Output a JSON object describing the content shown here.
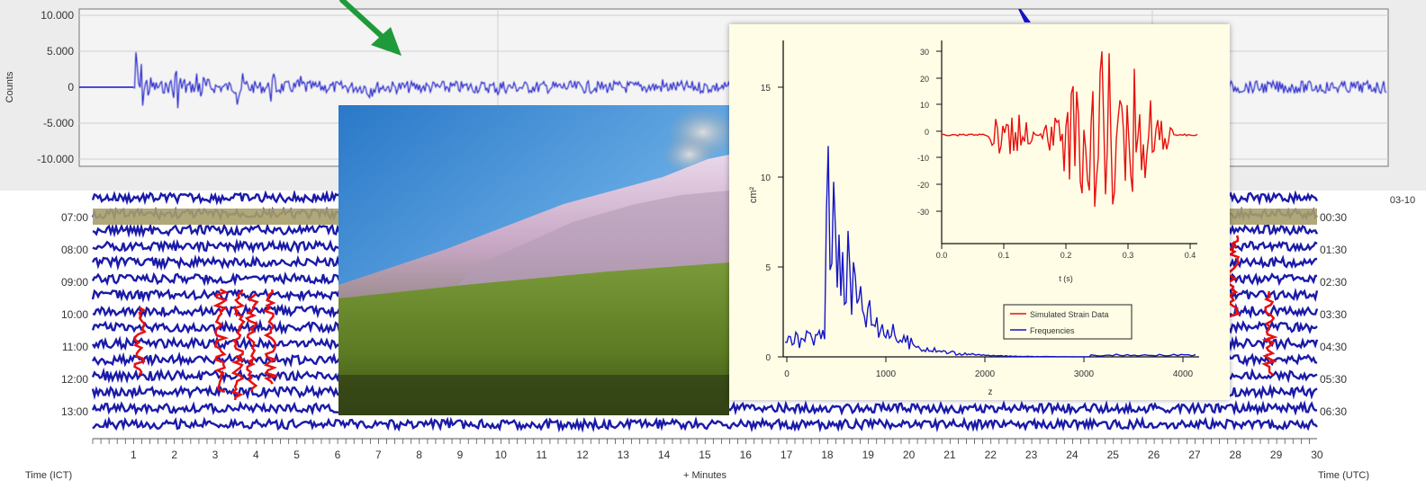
{
  "seismogram": {
    "y_axis_title": "Counts",
    "y_ticks": [
      "10.000",
      "5.000",
      "0",
      "-5.000",
      "-10.000"
    ]
  },
  "helicorder": {
    "left_times": [
      "07:00",
      "08:00",
      "09:00",
      "10:00",
      "11:00",
      "12:00",
      "13:00"
    ],
    "right_times": [
      "00:30",
      "01:30",
      "02:30",
      "03:30",
      "04:30",
      "05:30",
      "06:30"
    ],
    "date_label": "03-10",
    "minute_ticks": [
      "1",
      "2",
      "3",
      "4",
      "5",
      "6",
      "7",
      "8",
      "9",
      "10",
      "11",
      "12",
      "13",
      "14",
      "15",
      "16",
      "17",
      "18",
      "19",
      "20",
      "21",
      "22",
      "23",
      "24",
      "25",
      "26",
      "27",
      "28",
      "29",
      "30"
    ],
    "x_axis_title": "+ Minutes",
    "left_axis_title": "Time (ICT)",
    "right_axis_title": "Time (UTC)"
  },
  "inset_chart": {
    "left_y_ticks": [
      "15",
      "10",
      "5",
      "0"
    ],
    "left_y_label": "cm²",
    "left_x_ticks": [
      "0",
      "1000",
      "2000",
      "3000",
      "4000"
    ],
    "left_x_label": "z",
    "inner_y_ticks": [
      "30",
      "20",
      "10",
      "0",
      "-10",
      "-20",
      "-30"
    ],
    "inner_x_ticks": [
      "0.0",
      "0.1",
      "0.2",
      "0.3",
      "0.4"
    ],
    "inner_x_label": "t (s)",
    "legend": [
      "Simulated Strain Data",
      "Frequencies"
    ]
  },
  "colors": {
    "trace": "#1515c8",
    "helicorder_trace": "#1a1aa8",
    "red_trace": "#e81010",
    "arrow": "#1f9a3a",
    "panel_bg": "#ececec",
    "inset_bg": "#fffde6"
  }
}
